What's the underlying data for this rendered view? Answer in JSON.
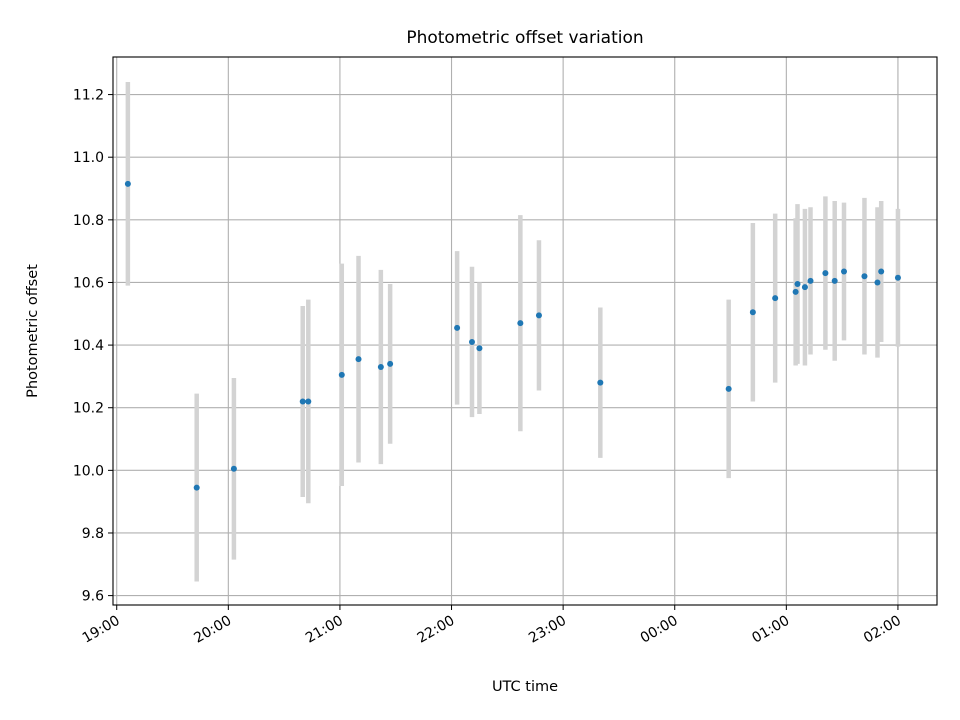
{
  "chart_data": {
    "type": "scatter",
    "title": "Photometric offset variation",
    "xlabel": "UTC time",
    "ylabel": "Photometric offset",
    "x_is_time": true,
    "x_reference_date": "day 0 = evening of observation; times after midnight are on day 1",
    "xlim": [
      "18:58",
      "02:21"
    ],
    "ylim": [
      9.57,
      11.32
    ],
    "x_ticks": [
      "19:00",
      "20:00",
      "21:00",
      "22:00",
      "23:00",
      "00:00",
      "01:00",
      "02:00"
    ],
    "y_ticks": [
      "9.6",
      "9.8",
      "10.0",
      "10.2",
      "10.4",
      "10.6",
      "10.8",
      "11.0",
      "11.2"
    ],
    "grid": true,
    "marker_color": "#1f77b4",
    "errorbar_color": "#d3d3d3",
    "series": [
      {
        "points": [
          {
            "t": "19:06",
            "y": 10.915,
            "err": 0.325
          },
          {
            "t": "19:43",
            "y": 9.945,
            "err": 0.3
          },
          {
            "t": "20:03",
            "y": 10.005,
            "err": 0.29
          },
          {
            "t": "20:40",
            "y": 10.22,
            "err": 0.305
          },
          {
            "t": "20:43",
            "y": 10.22,
            "err": 0.325
          },
          {
            "t": "21:01",
            "y": 10.305,
            "err": 0.355
          },
          {
            "t": "21:10",
            "y": 10.355,
            "err": 0.33
          },
          {
            "t": "21:22",
            "y": 10.33,
            "err": 0.31
          },
          {
            "t": "21:27",
            "y": 10.34,
            "err": 0.255
          },
          {
            "t": "22:03",
            "y": 10.455,
            "err": 0.245
          },
          {
            "t": "22:11",
            "y": 10.41,
            "err": 0.24
          },
          {
            "t": "22:15",
            "y": 10.39,
            "err": 0.21
          },
          {
            "t": "22:37",
            "y": 10.47,
            "err": 0.345
          },
          {
            "t": "22:47",
            "y": 10.495,
            "err": 0.24
          },
          {
            "t": "23:20",
            "y": 10.28,
            "err": 0.24
          },
          {
            "t": "00:29",
            "y": 10.26,
            "err": 0.285
          },
          {
            "t": "00:42",
            "y": 10.505,
            "err": 0.285
          },
          {
            "t": "00:54",
            "y": 10.55,
            "err": 0.27
          },
          {
            "t": "01:05",
            "y": 10.57,
            "err": 0.235
          },
          {
            "t": "01:06",
            "y": 10.595,
            "err": 0.255
          },
          {
            "t": "01:10",
            "y": 10.585,
            "err": 0.25
          },
          {
            "t": "01:13",
            "y": 10.605,
            "err": 0.235
          },
          {
            "t": "01:21",
            "y": 10.63,
            "err": 0.245
          },
          {
            "t": "01:26",
            "y": 10.605,
            "err": 0.255
          },
          {
            "t": "01:31",
            "y": 10.635,
            "err": 0.22
          },
          {
            "t": "01:42",
            "y": 10.62,
            "err": 0.25
          },
          {
            "t": "01:49",
            "y": 10.6,
            "err": 0.24
          },
          {
            "t": "01:51",
            "y": 10.635,
            "err": 0.225
          },
          {
            "t": "02:00",
            "y": 10.615,
            "err": 0.22
          }
        ]
      }
    ]
  }
}
